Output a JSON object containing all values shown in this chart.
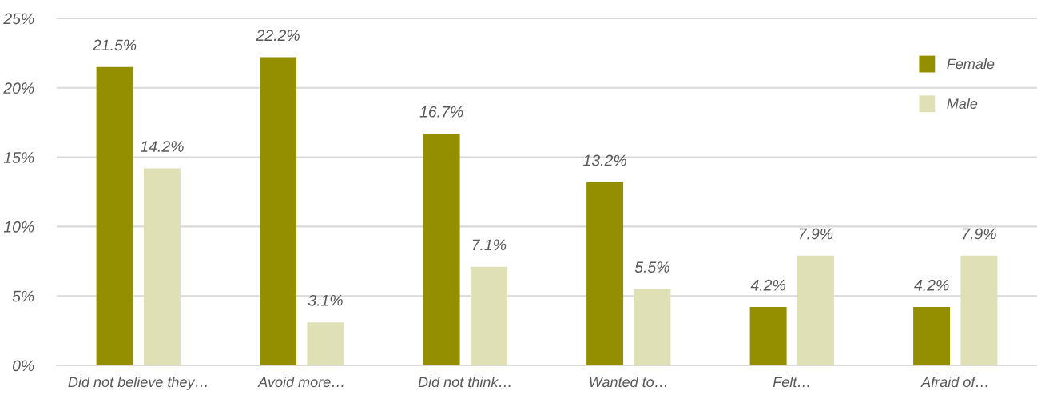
{
  "chart_data": {
    "type": "bar",
    "categories": [
      "Did not believe they…",
      "Avoid more…",
      "Did not think…",
      "Wanted to…",
      "Felt…",
      "Afraid of…"
    ],
    "series": [
      {
        "name": "Female",
        "color": "#948f00",
        "values": [
          21.5,
          22.2,
          16.7,
          13.2,
          4.2,
          4.2
        ],
        "value_labels": [
          "21.5%",
          "22.2%",
          "16.7%",
          "13.2%",
          "4.2%",
          "4.2%"
        ]
      },
      {
        "name": "Male",
        "color": "#dfe0b6",
        "values": [
          14.2,
          3.1,
          7.1,
          5.5,
          7.9,
          7.9
        ],
        "value_labels": [
          "14.2%",
          "3.1%",
          "7.1%",
          "5.5%",
          "7.9%",
          "7.9%"
        ]
      }
    ],
    "ylim": [
      0,
      25
    ],
    "yticks": [
      {
        "value": 0,
        "label": "0%"
      },
      {
        "value": 5,
        "label": "5%"
      },
      {
        "value": 10,
        "label": "10%"
      },
      {
        "value": 15,
        "label": "15%"
      },
      {
        "value": 20,
        "label": "20%"
      },
      {
        "value": 25,
        "label": "25%"
      }
    ],
    "grid": "y",
    "legend": "top right"
  }
}
